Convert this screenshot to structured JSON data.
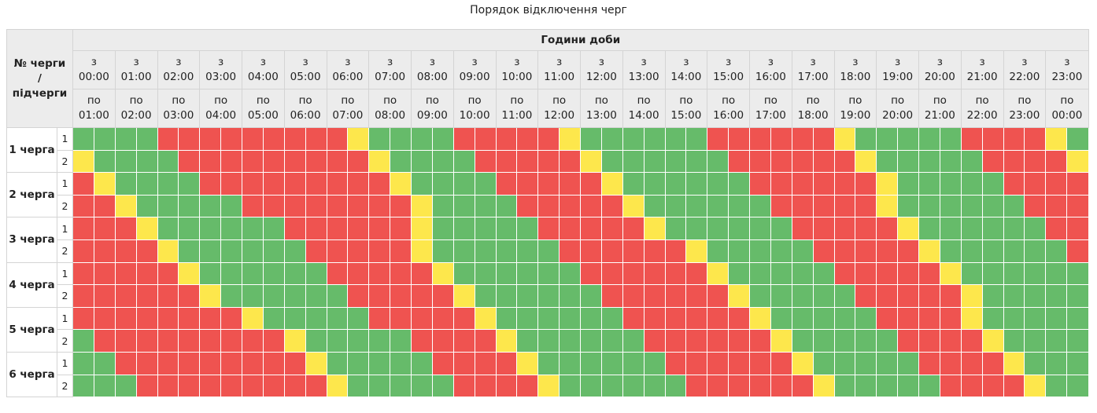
{
  "title": "Порядок відключення черг",
  "header": {
    "corner": [
      "№ черги",
      "/",
      "підчерги"
    ],
    "hours_title": "Години доби",
    "from_word": "з",
    "to_word": "по",
    "hours": [
      {
        "from": "00:00",
        "to": "01:00"
      },
      {
        "from": "01:00",
        "to": "02:00"
      },
      {
        "from": "02:00",
        "to": "03:00"
      },
      {
        "from": "03:00",
        "to": "04:00"
      },
      {
        "from": "04:00",
        "to": "05:00"
      },
      {
        "from": "05:00",
        "to": "06:00"
      },
      {
        "from": "06:00",
        "to": "07:00"
      },
      {
        "from": "07:00",
        "to": "08:00"
      },
      {
        "from": "08:00",
        "to": "09:00"
      },
      {
        "from": "09:00",
        "to": "10:00"
      },
      {
        "from": "10:00",
        "to": "11:00"
      },
      {
        "from": "11:00",
        "to": "12:00"
      },
      {
        "from": "12:00",
        "to": "13:00"
      },
      {
        "from": "13:00",
        "to": "14:00"
      },
      {
        "from": "14:00",
        "to": "15:00"
      },
      {
        "from": "15:00",
        "to": "16:00"
      },
      {
        "from": "16:00",
        "to": "17:00"
      },
      {
        "from": "17:00",
        "to": "18:00"
      },
      {
        "from": "18:00",
        "to": "19:00"
      },
      {
        "from": "19:00",
        "to": "20:00"
      },
      {
        "from": "20:00",
        "to": "21:00"
      },
      {
        "from": "21:00",
        "to": "22:00"
      },
      {
        "from": "22:00",
        "to": "23:00"
      },
      {
        "from": "23:00",
        "to": "00:00"
      }
    ]
  },
  "slot_colors": {
    "g": "#66bb6a",
    "r": "#ef5350",
    "y": "#fde74c"
  },
  "queues": [
    {
      "name": "1 черга",
      "subs": [
        {
          "label": "1",
          "slots": "ggggrrrrrrrrryggggrrrrryggggggrrrrrrygggggrrrryg"
        },
        {
          "label": "2",
          "slots": "yggggrrrrrrrrryggggrrrrryggggggrrrrrrygggggrrrry"
        }
      ]
    },
    {
      "name": "2 черга",
      "subs": [
        {
          "label": "1",
          "slots": "ryggggrrrrrrrrryggggrrrrryggggggrrrrrrygggggrrrr"
        },
        {
          "label": "2",
          "slots": "rrygggggrrrrrrrryggggrrrrryggggggrrrrryggggggrrr"
        }
      ]
    },
    {
      "name": "3 черга",
      "subs": [
        {
          "label": "1",
          "slots": "rrryggggggrrrrrrygggggrrrrryggggggrrrrryggggggrr"
        },
        {
          "label": "2",
          "slots": "rrrryggggggrrrrryggggggrrrrrrygggggrrrrryggggggr"
        }
      ]
    },
    {
      "name": "4 черга",
      "subs": [
        {
          "label": "1",
          "slots": "rrrrryggggggrrrrryggggggrrrrrrygggggrrrrrygggggg"
        },
        {
          "label": "2",
          "slots": "rrrrrryggggggrrrrryggggggrrrrrrygggggrrrrryggggg"
        }
      ]
    },
    {
      "name": "5 черга",
      "subs": [
        {
          "label": "1",
          "slots": "rrrrrrrrygggggrrrrryggggggrrrrrrygggggrrrryggggg"
        },
        {
          "label": "2",
          "slots": "grrrrrrrrrygggggrrrryggggggrrrrrrygggggrrrrygggg"
        }
      ]
    },
    {
      "name": "6 черга",
      "subs": [
        {
          "label": "1",
          "slots": "ggrrrrrrrrrygggggrrrryggggggrrrrrrygggggrrrryggg"
        },
        {
          "label": "2",
          "slots": "gggrrrrrrrrrygggggrrrryggggggrrrrrrygggggrrrrygg"
        }
      ]
    }
  ]
}
